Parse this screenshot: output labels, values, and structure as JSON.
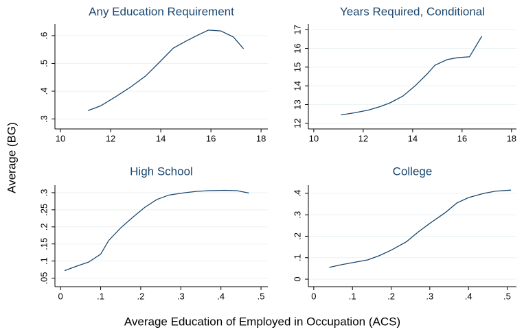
{
  "ylabel": "Average (BG)",
  "xlabel": "Average Education of Employed in Occupation (ACS)",
  "chart_data": [
    {
      "type": "line",
      "title": "Any Education Requirement",
      "color": "#1a476f",
      "grid": true,
      "x": [
        11.1,
        11.6,
        12.2,
        12.8,
        13.4,
        13.9,
        14.5,
        15.0,
        15.5,
        15.9,
        16.4,
        16.9,
        17.3
      ],
      "values": [
        0.33,
        0.347,
        0.38,
        0.415,
        0.455,
        0.5,
        0.555,
        0.58,
        0.603,
        0.62,
        0.617,
        0.595,
        0.553
      ],
      "xlim": [
        9.78,
        18.27
      ],
      "ylim": [
        0.264,
        0.642
      ],
      "xticks": [
        10,
        12,
        14,
        16,
        18
      ],
      "yticks": [
        {
          "value": 0.3,
          "label": ".3"
        },
        {
          "value": 0.4,
          "label": ".4"
        },
        {
          "value": 0.5,
          "label": ".5"
        },
        {
          "value": 0.6,
          "label": ".6"
        }
      ]
    },
    {
      "type": "line",
      "title": "Years Required, Conditional",
      "color": "#1a476f",
      "grid": true,
      "x": [
        11.1,
        11.6,
        12.2,
        12.7,
        13.1,
        13.6,
        14.1,
        14.6,
        14.9,
        15.4,
        15.8,
        16.3,
        16.8
      ],
      "values": [
        12.45,
        12.55,
        12.7,
        12.9,
        13.1,
        13.45,
        14.0,
        14.65,
        15.1,
        15.4,
        15.5,
        15.55,
        16.65
      ],
      "xlim": [
        9.78,
        18.2
      ],
      "ylim": [
        11.7,
        17.3
      ],
      "xticks": [
        10,
        12,
        14,
        16,
        18
      ],
      "yticks": [
        12,
        13,
        14,
        15,
        16,
        17
      ]
    },
    {
      "type": "line",
      "title": "High School",
      "color": "#1a476f",
      "grid": true,
      "x": [
        0.01,
        0.04,
        0.07,
        0.1,
        0.12,
        0.15,
        0.18,
        0.21,
        0.24,
        0.27,
        0.31,
        0.34,
        0.37,
        0.41,
        0.44,
        0.47
      ],
      "values": [
        0.072,
        0.085,
        0.097,
        0.12,
        0.16,
        0.197,
        0.228,
        0.257,
        0.28,
        0.293,
        0.3,
        0.304,
        0.306,
        0.307,
        0.306,
        0.299
      ],
      "xlim": [
        -0.014,
        0.517
      ],
      "ylim": [
        0.025,
        0.322
      ],
      "xticks": [
        0,
        {
          "value": 0.1,
          "label": ".1"
        },
        {
          "value": 0.2,
          "label": ".2"
        },
        {
          "value": 0.3,
          "label": ".3"
        },
        {
          "value": 0.4,
          "label": ".4"
        },
        {
          "value": 0.5,
          "label": ".5"
        }
      ],
      "yticks": [
        {
          "value": 0.05,
          "label": ".05"
        },
        {
          "value": 0.1,
          "label": ".1"
        },
        {
          "value": 0.15,
          "label": ".15"
        },
        {
          "value": 0.2,
          "label": ".2"
        },
        {
          "value": 0.25,
          "label": ".25"
        },
        {
          "value": 0.3,
          "label": ".3"
        }
      ]
    },
    {
      "type": "line",
      "title": "College",
      "color": "#1a476f",
      "grid": true,
      "x": [
        0.04,
        0.07,
        0.1,
        0.14,
        0.17,
        0.2,
        0.24,
        0.27,
        0.3,
        0.34,
        0.37,
        0.4,
        0.44,
        0.47,
        0.51
      ],
      "values": [
        0.055,
        0.067,
        0.077,
        0.09,
        0.11,
        0.135,
        0.175,
        0.22,
        0.26,
        0.31,
        0.355,
        0.38,
        0.4,
        0.41,
        0.415
      ],
      "xlim": [
        -0.014,
        0.524
      ],
      "ylim": [
        -0.035,
        0.438
      ],
      "xticks": [
        0,
        {
          "value": 0.1,
          "label": ".1"
        },
        {
          "value": 0.2,
          "label": ".2"
        },
        {
          "value": 0.3,
          "label": ".3"
        },
        {
          "value": 0.4,
          "label": ".4"
        },
        {
          "value": 0.5,
          "label": ".5"
        }
      ],
      "yticks": [
        0,
        {
          "value": 0.1,
          "label": ".1"
        },
        {
          "value": 0.2,
          "label": ".2"
        },
        {
          "value": 0.3,
          "label": ".3"
        },
        {
          "value": 0.4,
          "label": ".4"
        }
      ]
    }
  ]
}
